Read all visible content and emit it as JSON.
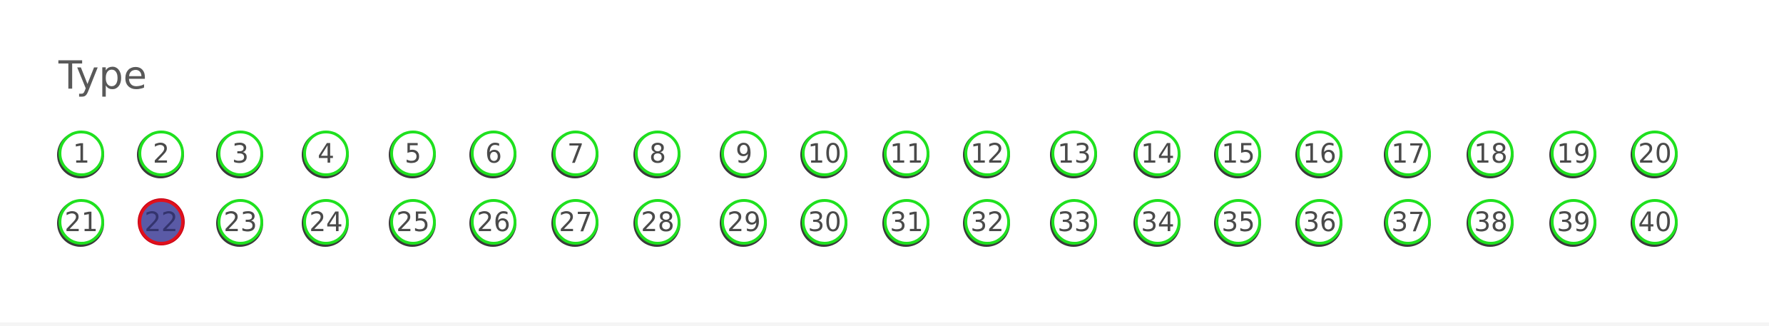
{
  "question": {
    "label": "Type",
    "selected": "22",
    "options": [
      "1",
      "2",
      "3",
      "4",
      "5",
      "6",
      "7",
      "8",
      "9",
      "10",
      "11",
      "12",
      "13",
      "14",
      "15",
      "16",
      "17",
      "18",
      "19",
      "20",
      "21",
      "22",
      "23",
      "24",
      "25",
      "26",
      "27",
      "28",
      "29",
      "30",
      "31",
      "32",
      "33",
      "34",
      "35",
      "36",
      "37",
      "38",
      "39",
      "40"
    ]
  }
}
